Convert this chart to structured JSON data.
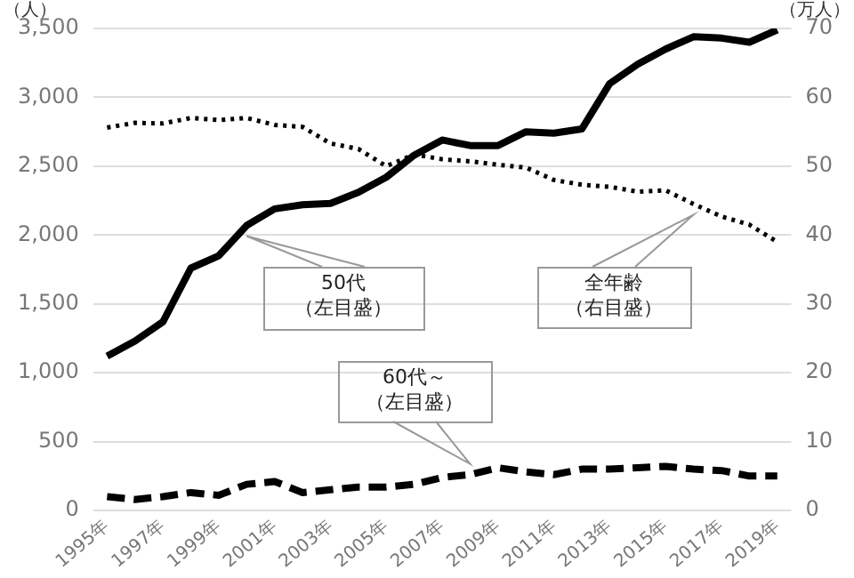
{
  "chart_data": {
    "type": "line",
    "ylabel": "（人）",
    "y2label": "（万人）",
    "categories": [
      "1995年",
      null,
      "1997年",
      null,
      "1999年",
      null,
      "2001年",
      null,
      "2003年",
      null,
      "2005年",
      null,
      "2007年",
      null,
      "2009年",
      null,
      "2011年",
      null,
      "2013年",
      null,
      "2015年",
      null,
      "2017年",
      null,
      "2019年"
    ],
    "series": [
      {
        "color": "#000000",
        "line_style": "solid",
        "values": [
          1120,
          1230,
          1370,
          1760,
          1850,
          2070,
          2190,
          2220,
          2230,
          2310,
          2420,
          2580,
          2690,
          2650,
          2650,
          2750,
          2740,
          2770,
          3100,
          3240,
          3350,
          3440,
          3430,
          3400,
          3490
        ]
      },
      {
        "color": "#000000",
        "line_style": "dashed",
        "values": [
          100,
          80,
          100,
          130,
          110,
          190,
          210,
          130,
          150,
          170,
          170,
          190,
          240,
          260,
          310,
          280,
          260,
          300,
          300,
          310,
          320,
          300,
          290,
          250,
          250
        ]
      },
      {
        "color": "#000000",
        "line_style": "dotted",
        "axis": "y2",
        "values": [
          55.6,
          56.3,
          56.2,
          57.0,
          56.7,
          57.0,
          56.0,
          55.7,
          53.3,
          52.5,
          50.0,
          51.7,
          51.0,
          50.7,
          50.2,
          49.8,
          48.0,
          47.3,
          47.0,
          46.3,
          46.5,
          44.5,
          42.7,
          41.5,
          39.0
        ]
      }
    ],
    "ylim": [
      0,
      3500
    ],
    "yticks": [
      {
        "value": 0,
        "label": "0"
      },
      {
        "value": 500,
        "label": "500"
      },
      {
        "value": 1000,
        "label": "1,000"
      },
      {
        "value": 1500,
        "label": "1,500"
      },
      {
        "value": 2000,
        "label": "2,000"
      },
      {
        "value": 2500,
        "label": "2,500"
      },
      {
        "value": 3000,
        "label": "3,000"
      },
      {
        "value": 3500,
        "label": "3,500"
      }
    ],
    "y2lim": [
      0,
      70
    ],
    "y2ticks": [
      0,
      10,
      20,
      30,
      40,
      50,
      60,
      70
    ],
    "grid": "y",
    "legend": false,
    "marker": "none",
    "annotations": [
      "50代（左目盛）",
      "60代～（左目盛）",
      "全年齢（右目盛）"
    ]
  }
}
